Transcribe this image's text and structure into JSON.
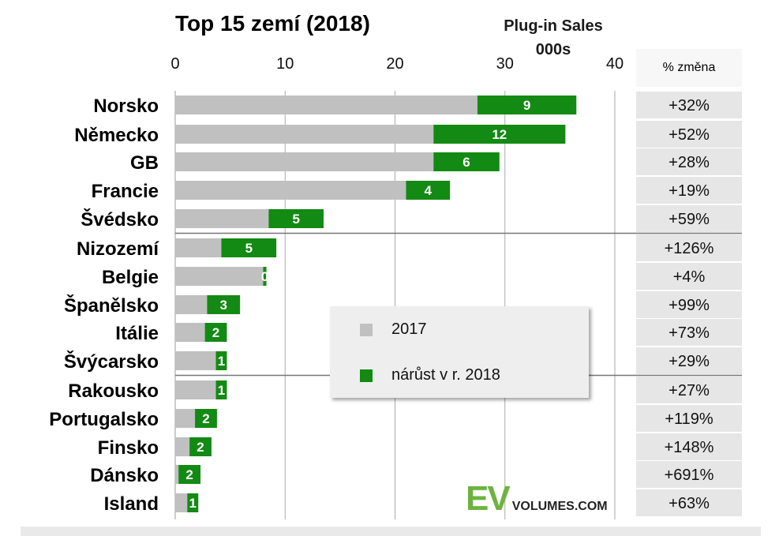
{
  "chart_data": {
    "type": "bar",
    "title": "Top 15 zemí (2018)",
    "unit_label_line1": "Plug-in Sales",
    "unit_label_line2": "000s",
    "pct_header": "% změna",
    "xlim": [
      0,
      40
    ],
    "x_ticks": [
      "0",
      "10",
      "20",
      "30",
      "40"
    ],
    "grid": true,
    "legend_position": "center",
    "categories": [
      "Norsko",
      "Německo",
      "GB",
      "Francie",
      "Švédsko",
      "Nizozemí",
      "Belgie",
      "Španělsko",
      "Itálie",
      "Švýcarsko",
      "Rakousko",
      "Portugalsko",
      "Finsko",
      "Dánsko",
      "Island"
    ],
    "series": [
      {
        "name": "2017",
        "color": "#c0c0c0",
        "values": [
          27.5,
          23.5,
          23.5,
          21,
          8.5,
          4.2,
          8.0,
          2.9,
          2.7,
          3.7,
          3.7,
          1.8,
          1.3,
          0.3,
          1.1
        ]
      },
      {
        "name": "nárůst v r. 2018",
        "color": "#138a13",
        "values": [
          9,
          12,
          6,
          4,
          5,
          5,
          0.3,
          3,
          2,
          1,
          1,
          2,
          2,
          2,
          1
        ]
      }
    ],
    "bar_labels": [
      "9",
      "12",
      "6",
      "4",
      "5",
      "5",
      "0",
      "3",
      "2",
      "1",
      "1",
      "2",
      "2",
      "2",
      "1"
    ],
    "pct_change": [
      "+32%",
      "+52%",
      "+28%",
      "+19%",
      "+59%",
      "+126%",
      "+4%",
      "+99%",
      "+73%",
      "+29%",
      "+27%",
      "+119%",
      "+148%",
      "+691%",
      "+63%"
    ],
    "group_separators_after": [
      4,
      9
    ]
  },
  "watermark": {
    "ev": "EV",
    "rest": "VOLUMES.COM"
  },
  "colors": {
    "gray": "#c0c0c0",
    "green": "#138a13",
    "pct_cell": "#e6e6e6",
    "grid": "#aaaaaa"
  }
}
